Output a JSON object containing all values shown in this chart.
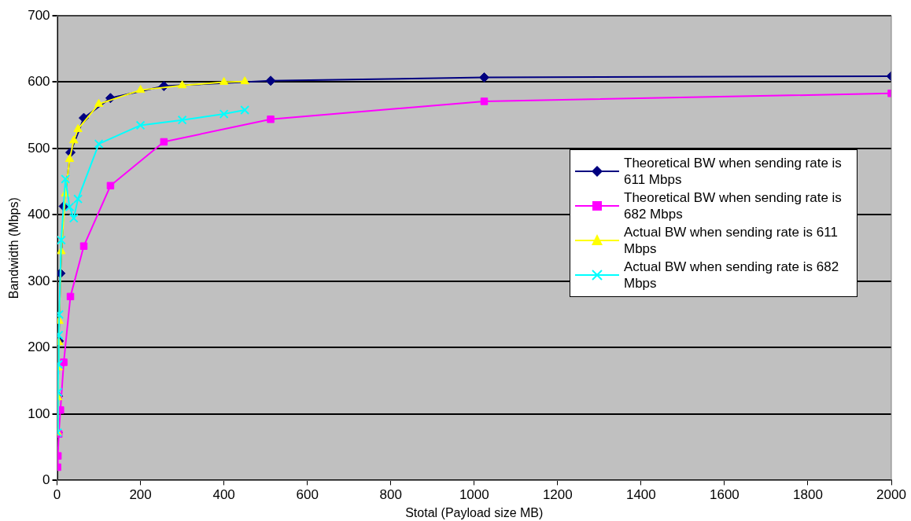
{
  "chart_data": {
    "type": "line",
    "xlabel": "Stotal (Payload size MB)",
    "ylabel": "Bandwidth (Mbps)",
    "xlim": [
      0,
      2000
    ],
    "xticks": [
      0,
      200,
      400,
      600,
      800,
      1000,
      1200,
      1400,
      1600,
      1800,
      2000
    ],
    "ylim": [
      0,
      700
    ],
    "yticks": [
      0,
      100,
      200,
      300,
      400,
      500,
      600,
      700
    ],
    "grid": "y",
    "legend": "right",
    "line_style": "solid",
    "series": [
      {
        "name": "Theoretical BW when sending rate is 611 Mbps",
        "color": "#000080",
        "marker": "diamond",
        "x": [
          1,
          2,
          4,
          8,
          16,
          32,
          64,
          128,
          256,
          512,
          1024,
          2000
        ],
        "values": [
          72,
          127,
          210,
          312,
          413,
          494,
          546,
          576,
          594,
          602,
          607,
          609
        ]
      },
      {
        "name": "Theoretical BW when sending rate is 682 Mbps",
        "color": "#ff00ff",
        "marker": "square",
        "x": [
          1,
          2,
          4,
          8,
          16,
          32,
          64,
          128,
          256,
          512,
          1024,
          2000
        ],
        "values": [
          20,
          37,
          70,
          106,
          178,
          277,
          353,
          444,
          510,
          544,
          571,
          583
        ]
      },
      {
        "name": "Actual BW when sending rate is 611 Mbps",
        "color": "#ffff00",
        "marker": "triangle",
        "x": [
          1,
          2,
          3,
          4,
          5,
          10,
          20,
          30,
          40,
          50,
          100,
          200,
          300,
          400,
          450
        ],
        "values": [
          72,
          125,
          170,
          208,
          240,
          345,
          432,
          484,
          512,
          529,
          567,
          588,
          595,
          600,
          601
        ]
      },
      {
        "name": "Actual BW when sending rate is 682 Mbps",
        "color": "#00ffff",
        "marker": "cross",
        "x": [
          1,
          2,
          3,
          4,
          5,
          10,
          20,
          30,
          40,
          50,
          100,
          200,
          300,
          400,
          450
        ],
        "values": [
          72,
          133,
          175,
          219,
          250,
          362,
          454,
          412,
          395,
          424,
          507,
          535,
          543,
          552,
          558
        ]
      }
    ]
  }
}
